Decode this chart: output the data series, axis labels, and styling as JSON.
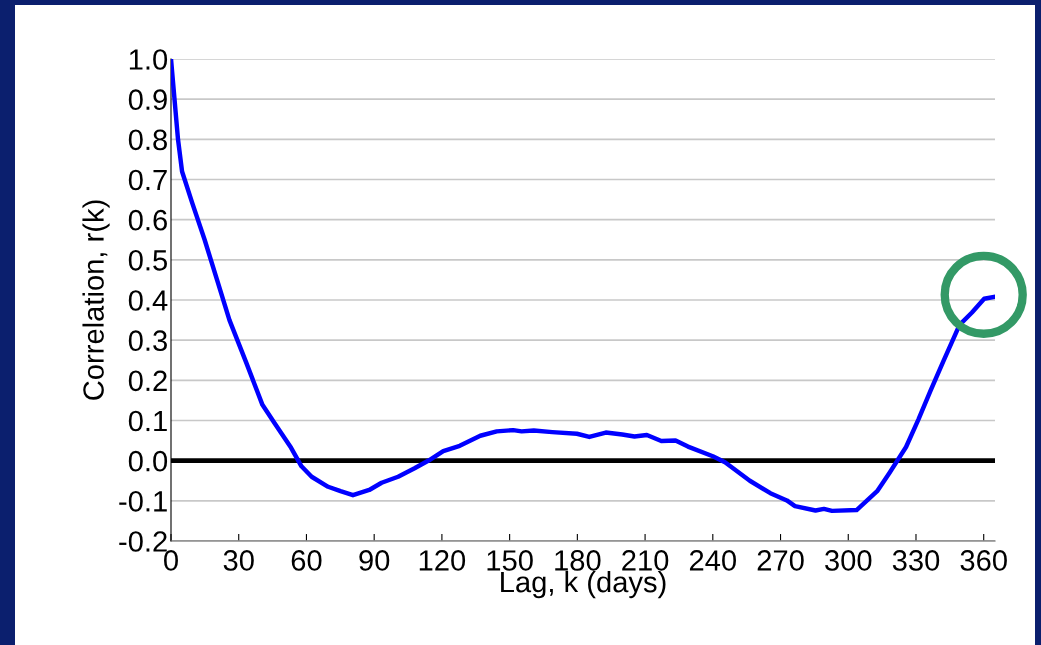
{
  "chart_data": {
    "type": "line",
    "xlabel": "Lag, k (days)",
    "ylabel": "Correlation, r(k)",
    "xlim": [
      0,
      365
    ],
    "xticks": [
      0,
      30,
      60,
      90,
      120,
      150,
      180,
      210,
      240,
      270,
      300,
      330,
      360
    ],
    "ylim": [
      -0.2,
      1.0
    ],
    "yticks": [
      {
        "value": -0.2,
        "label": "-0.2"
      },
      {
        "value": -0.1,
        "label": "-0.1"
      },
      {
        "value": 0.0,
        "label": "0.0"
      },
      {
        "value": 0.1,
        "label": "0.1"
      },
      {
        "value": 0.2,
        "label": "0.2"
      },
      {
        "value": 0.3,
        "label": "0.3"
      },
      {
        "value": 0.4,
        "label": "0.4"
      },
      {
        "value": 0.5,
        "label": "0.5"
      },
      {
        "value": 0.6,
        "label": "0.6"
      },
      {
        "value": 0.7,
        "label": "0.7"
      },
      {
        "value": 0.8,
        "label": "0.8"
      },
      {
        "value": 0.9,
        "label": "0.9"
      },
      {
        "value": 1.0,
        "label": "1.0"
      }
    ],
    "grid": "y",
    "marker": "none",
    "line_style": "solid",
    "ref_lines": [
      {
        "axis": "y",
        "value": 0,
        "color": "#000000"
      }
    ],
    "x": [
      0,
      3.1,
      4.9,
      9.5,
      14.9,
      20.4,
      25.9,
      33.2,
      40.5,
      45.9,
      53.2,
      57.8,
      62.3,
      69.6,
      75.1,
      80.6,
      87.8,
      93.3,
      100.6,
      107.9,
      114.3,
      120.6,
      127.9,
      137,
      144.3,
      151.6,
      155.3,
      160.7,
      168.9,
      179.8,
      185.3,
      192.6,
      199.9,
      205.3,
      210.8,
      217.2,
      223.5,
      229,
      240,
      245.4,
      256.4,
      265.5,
      272.8,
      276.4,
      285.5,
      289.2,
      292.8,
      303.7,
      312.8,
      318.3,
      325.6,
      331.1,
      336.5,
      342,
      349.3,
      354.8,
      360.2,
      364.8
    ],
    "series": [
      {
        "color": "#0000ff",
        "values": [
          1.0,
          0.8,
          0.72,
          0.64,
          0.55,
          0.45,
          0.35,
          0.246,
          0.139,
          0.093,
          0.032,
          -0.014,
          -0.04,
          -0.065,
          -0.076,
          -0.086,
          -0.073,
          -0.055,
          -0.04,
          -0.019,
          0.001,
          0.024,
          0.037,
          0.062,
          0.073,
          0.076,
          0.073,
          0.075,
          0.071,
          0.067,
          0.059,
          0.07,
          0.065,
          0.06,
          0.064,
          0.049,
          0.05,
          0.035,
          0.011,
          -0.004,
          -0.05,
          -0.081,
          -0.099,
          -0.113,
          -0.124,
          -0.12,
          -0.125,
          -0.123,
          -0.076,
          -0.03,
          0.034,
          0.103,
          0.175,
          0.246,
          0.338,
          0.369,
          0.403,
          0.408
        ]
      }
    ]
  }
}
